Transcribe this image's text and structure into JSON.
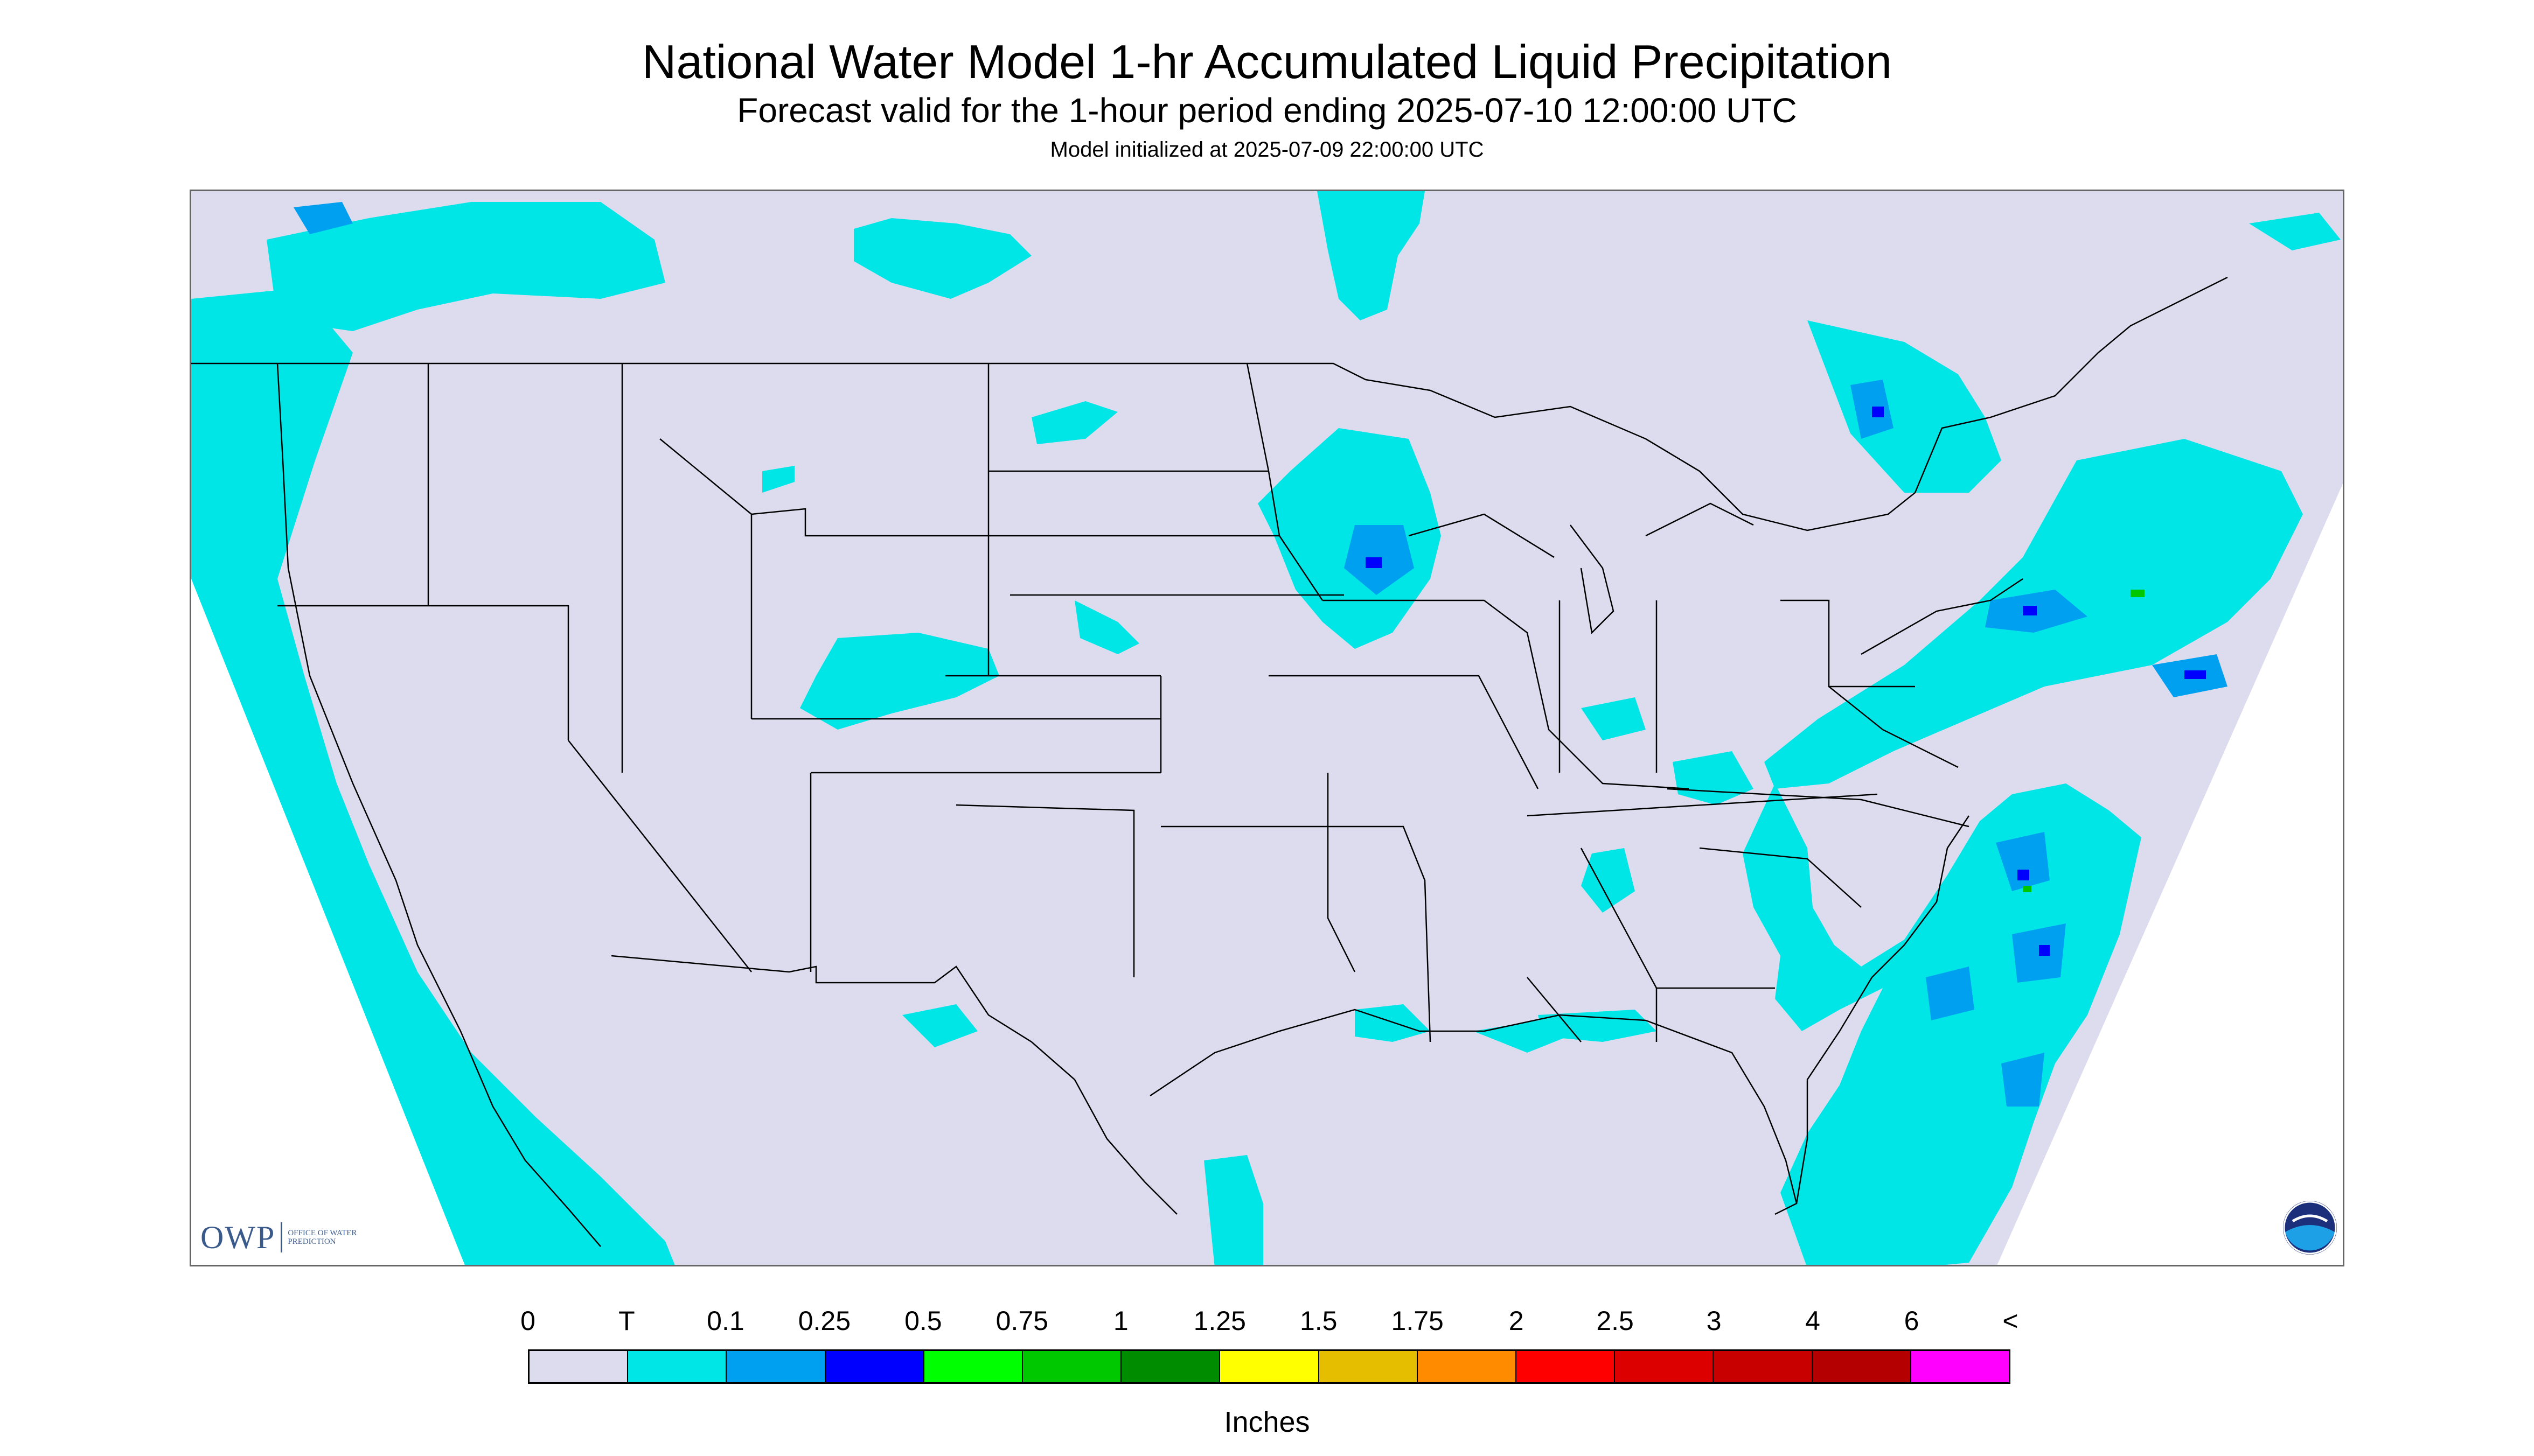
{
  "title": "National Water Model 1-hr Accumulated Liquid Precipitation",
  "subtitle": "Forecast valid for the 1-hour period ending 2025-07-10 12:00:00 UTC",
  "init_line": "Model initialized at 2025-07-09 22:00:00 UTC",
  "logos": {
    "owp_word": "OWP",
    "owp_text": "OFFICE OF WATER PREDICTION",
    "noaa_text": "NOAA"
  },
  "legend": {
    "ticks": [
      "0",
      "T",
      "0.1",
      "0.25",
      "0.5",
      "0.75",
      "1",
      "1.25",
      "1.5",
      "1.75",
      "2",
      "2.5",
      "3",
      "4",
      "6",
      "<"
    ],
    "colors": [
      "#dcdcee",
      "#00e6e6",
      "#00a0f0",
      "#0000ff",
      "#00ff00",
      "#00c800",
      "#008c00",
      "#ffff00",
      "#e6be00",
      "#ff8c00",
      "#ff0000",
      "#dc0000",
      "#c80000",
      "#b40000",
      "#ff00ff",
      "#9955c8"
    ],
    "units": "Inches"
  },
  "map": {
    "land_color": "#dcdcee",
    "outside_color": "#ffffff",
    "border_color": "#000000",
    "precip_trace_color": "#00e6e6",
    "precip_light_color": "#00a0f0",
    "precip_moderate_color": "#0000ff",
    "precip_heavy_color": "#00c800"
  }
}
